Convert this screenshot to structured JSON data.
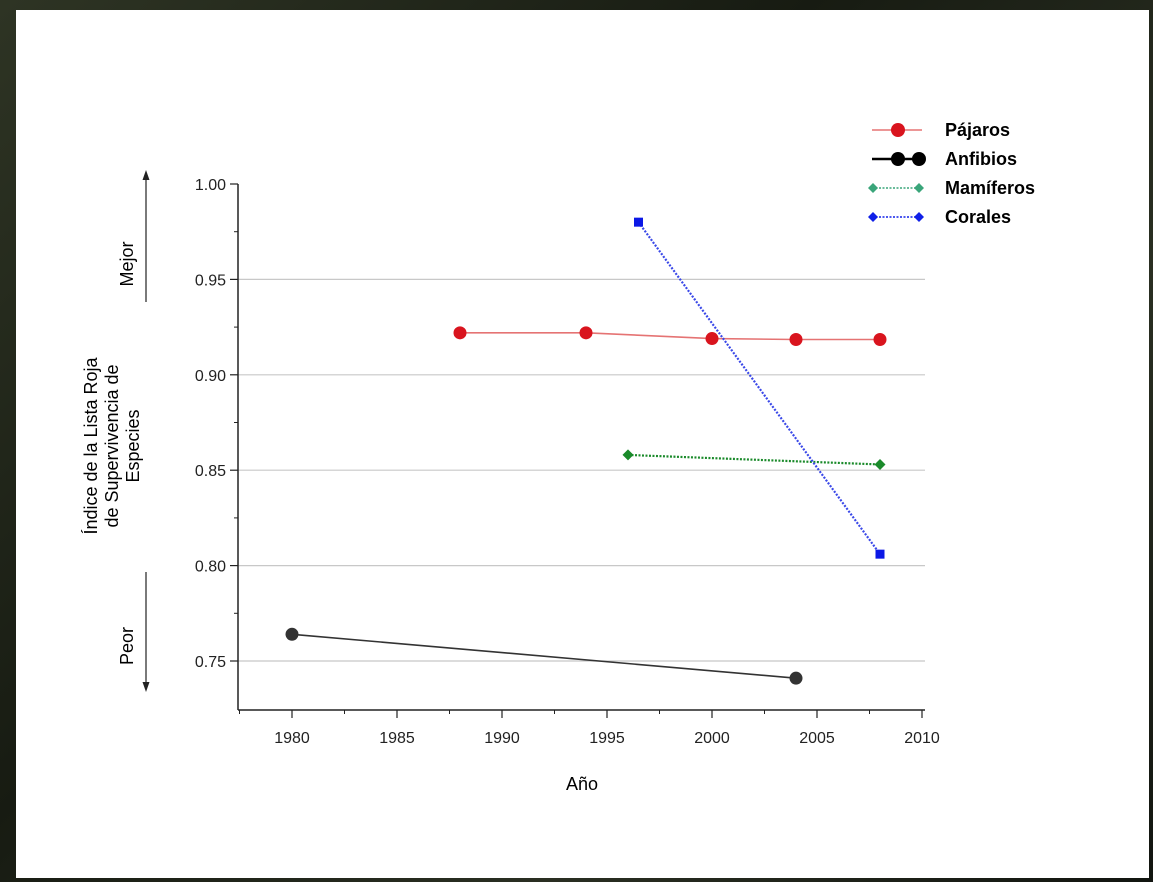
{
  "chart_data": {
    "type": "line",
    "xlabel": "Año",
    "ylabel": "Índice de la Lista Roja de Supervivencia de Especies",
    "ylabel_lines": [
      "Índice de la Lista Roja",
      "de Supervivencia de",
      "Especies"
    ],
    "better_label": "Mejor",
    "worse_label": "Peor",
    "xlim": [
      1977.5,
      2010
    ],
    "ylim": [
      0.725,
      1.0
    ],
    "x_ticks": [
      1980,
      1985,
      1990,
      1995,
      2000,
      2005,
      2010
    ],
    "y_ticks": [
      0.75,
      0.8,
      0.85,
      0.9,
      0.95,
      1.0
    ],
    "y_tick_labels": [
      "0.75",
      "0.80",
      "0.85",
      "0.90",
      "0.95",
      "1.00"
    ],
    "grid": "horizontal",
    "legend_position": "top-right",
    "series": [
      {
        "name": "Pájaros",
        "color": "#d9141e",
        "line_color": "#e57373",
        "marker": "circle",
        "dash": "solid",
        "x": [
          1988,
          1994,
          2000,
          2004,
          2008
        ],
        "y": [
          0.922,
          0.922,
          0.919,
          0.9185,
          0.9185
        ]
      },
      {
        "name": "Anfibios",
        "color": "#333333",
        "line_color": "#333333",
        "marker": "circle",
        "dash": "solid",
        "x": [
          1980,
          2004
        ],
        "y": [
          0.764,
          0.741
        ]
      },
      {
        "name": "Mamíferos",
        "color": "#1a8a2a",
        "line_color": "#1a8a2a",
        "marker": "diamond",
        "dash": "dotted",
        "x": [
          1996,
          2008
        ],
        "y": [
          0.858,
          0.853
        ]
      },
      {
        "name": "Corales",
        "color": "#0b18e6",
        "line_color": "#3a48e8",
        "marker": "square",
        "dash": "dotted",
        "x": [
          1996.5,
          2008
        ],
        "y": [
          0.98,
          0.806
        ]
      }
    ],
    "legend_colors": {
      "Pájaros": "#d9141e",
      "Anfibios": "#000000",
      "Mamíferos": "#3aa57a",
      "Corales": "#1020e8"
    }
  }
}
